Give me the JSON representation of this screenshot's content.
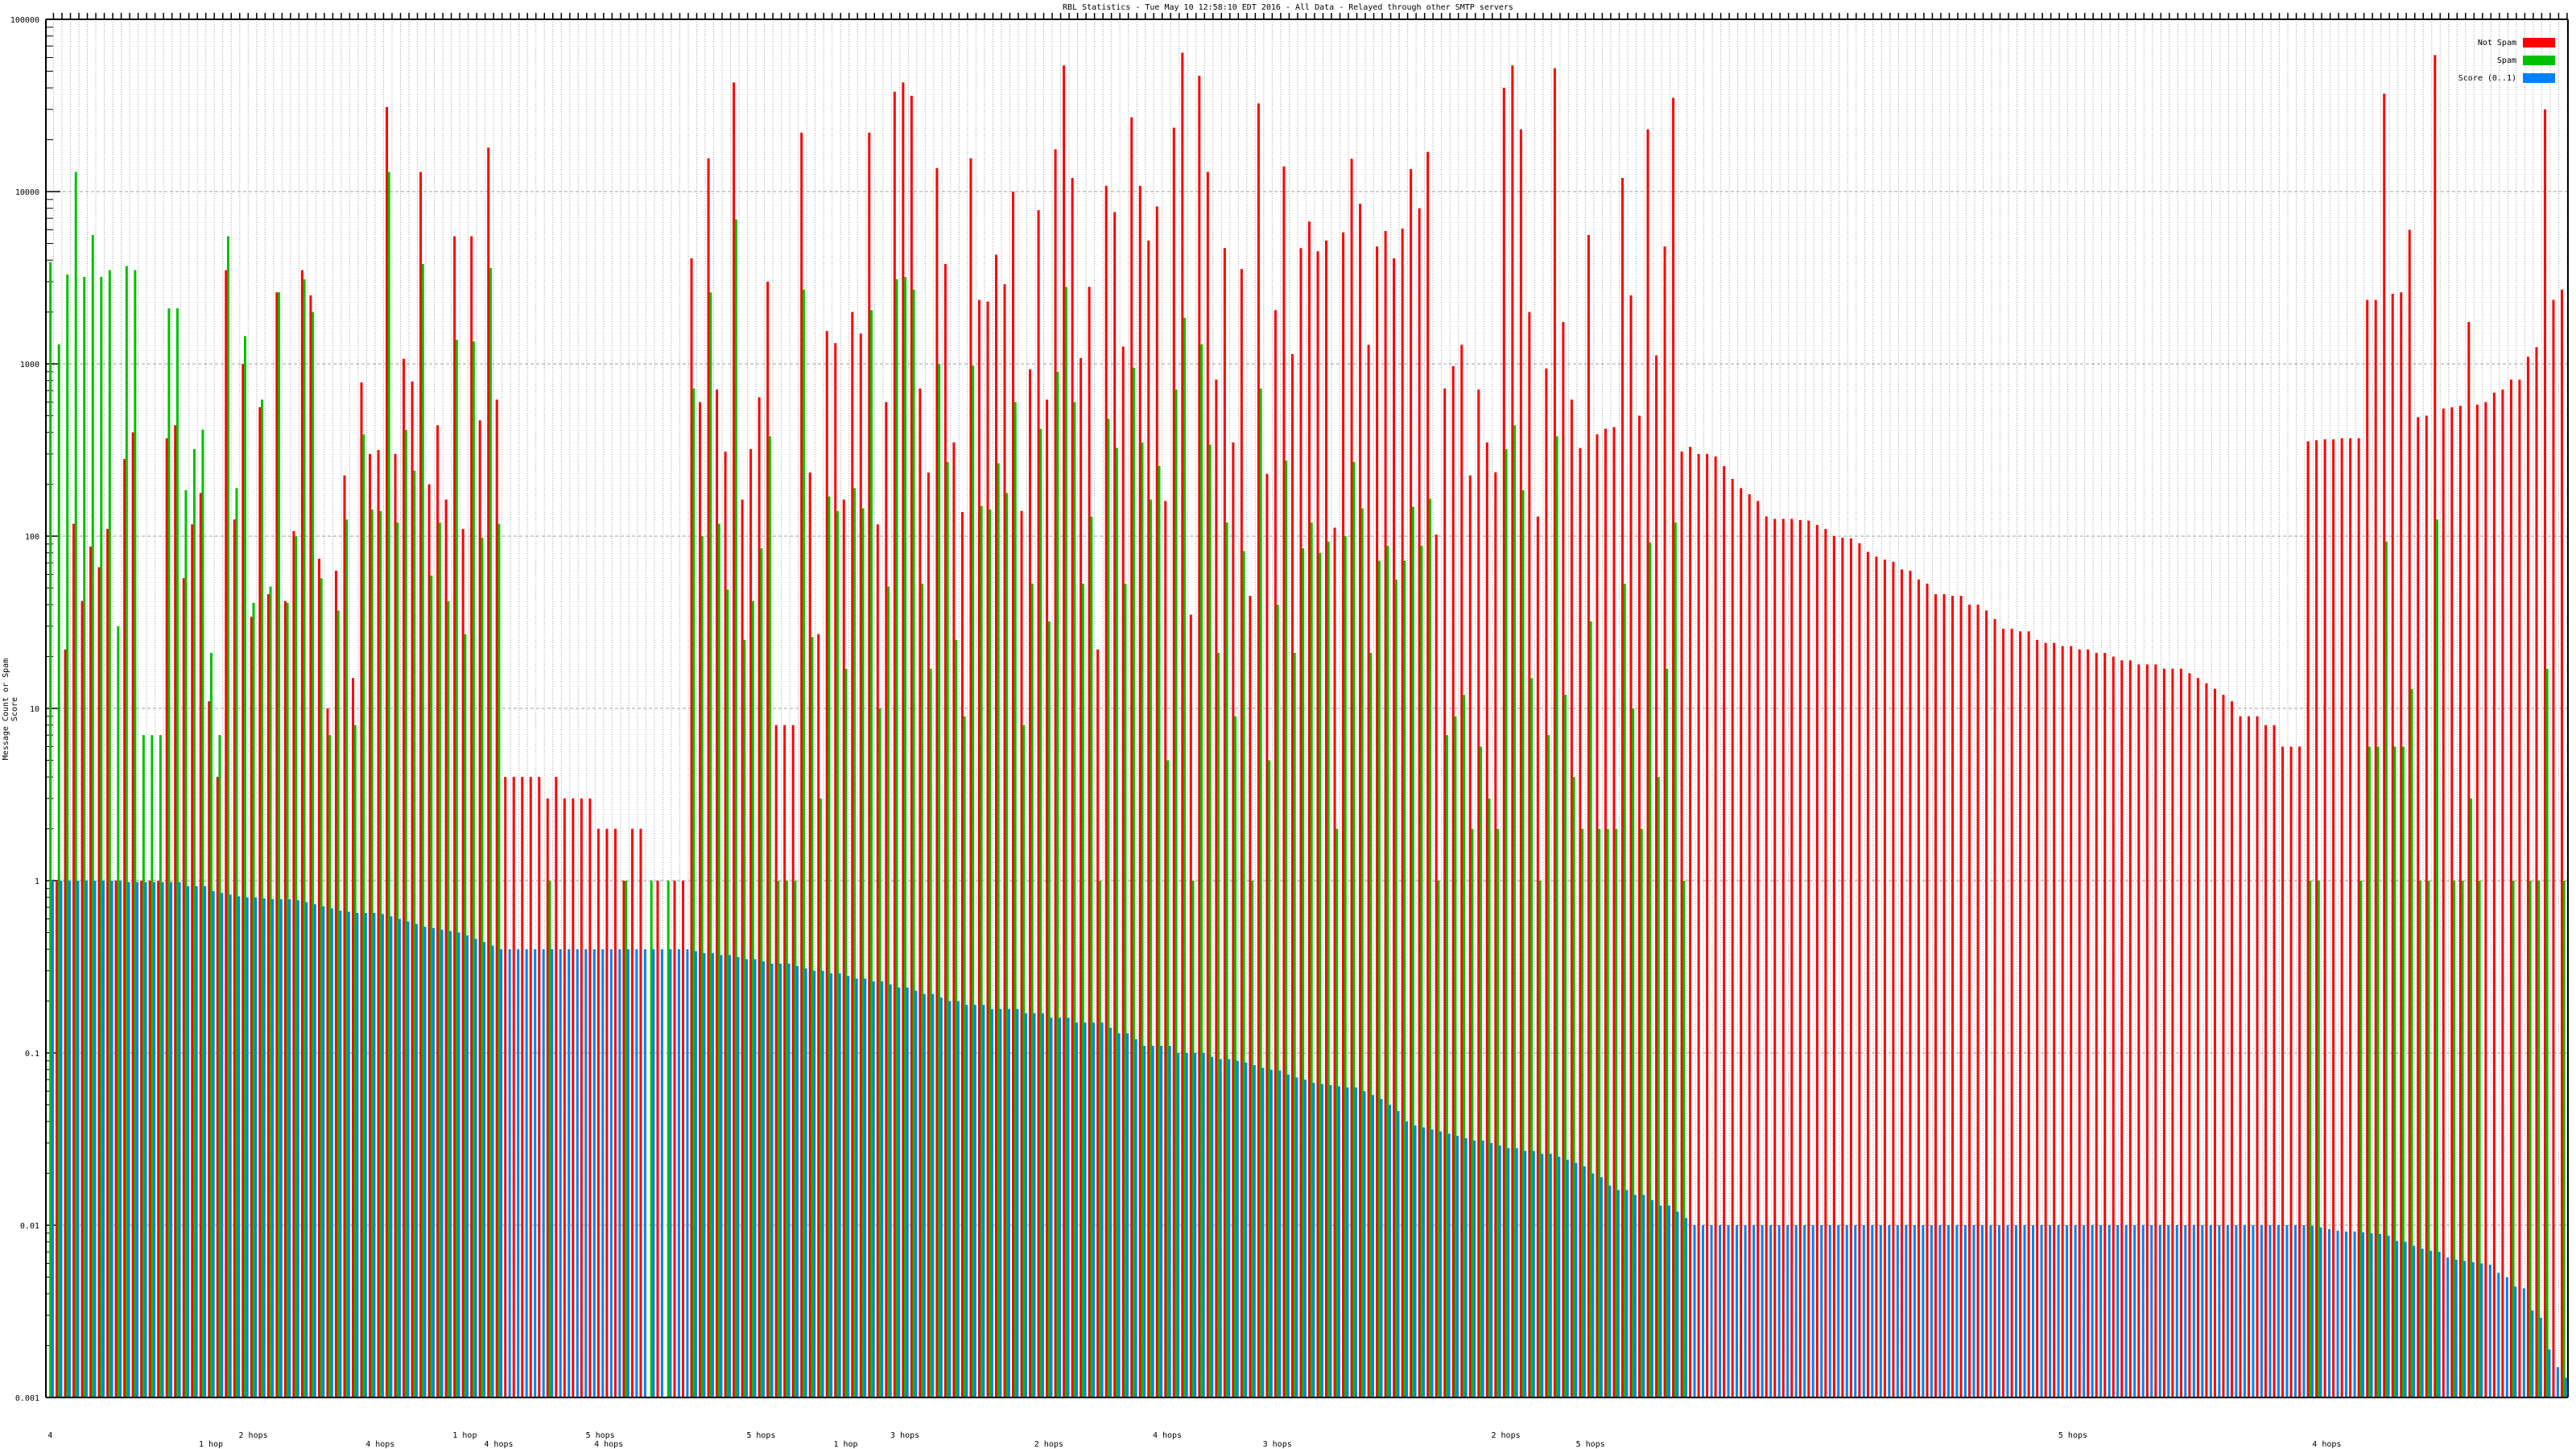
{
  "chart_data": {
    "type": "bar",
    "title": "RBL Statistics - Tue May 10 12:58:10 EDT 2016 - All Data - Relayed through other SMTP servers",
    "xlabel": "",
    "ylabel": "Message Count or Spam Score",
    "yscale": "log",
    "ylim": [
      0.001,
      100000
    ],
    "yticks": [
      "100000",
      "10000",
      "1000",
      "100",
      "10",
      "1",
      "0.1",
      "0.01",
      "0.001"
    ],
    "grid": true,
    "legend_position": "top-right",
    "x_label_fragments": [
      {
        "group": 1,
        "text": "4"
      },
      {
        "group": 20,
        "text": "1 hop"
      },
      {
        "group": 25,
        "text": "2 hops"
      },
      {
        "group": 40,
        "text": "4 hops"
      },
      {
        "group": 50,
        "text": "1 hop"
      },
      {
        "group": 54,
        "text": "4 hops"
      },
      {
        "group": 66,
        "text": "5 hops"
      },
      {
        "group": 67,
        "text": "4 hops"
      },
      {
        "group": 85,
        "text": "5 hops"
      },
      {
        "group": 95,
        "text": "1 hop"
      },
      {
        "group": 102,
        "text": "3 hops"
      },
      {
        "group": 119,
        "text": "2 hops"
      },
      {
        "group": 133,
        "text": "4 hops"
      },
      {
        "group": 146,
        "text": "3 hops"
      },
      {
        "group": 173,
        "text": "2 hops"
      },
      {
        "group": 183,
        "text": "5 hops"
      },
      {
        "group": 240,
        "text": "5 hops"
      },
      {
        "group": 270,
        "text": "4 hops"
      }
    ],
    "series": [
      {
        "name": "Not Spam",
        "color": "#ff0000",
        "values": [
          0,
          1,
          22,
          118,
          42,
          87,
          66,
          110,
          1,
          280,
          400,
          1,
          1,
          1,
          370,
          440,
          57,
          117,
          178,
          11,
          4,
          3500,
          125,
          1000,
          34,
          560,
          46,
          2600,
          42,
          107,
          3500,
          2500,
          74,
          10,
          63,
          225,
          15,
          780,
          300,
          316,
          31000,
          300,
          1070,
          790,
          13000,
          200,
          440,
          163,
          5500,
          110,
          5500,
          470,
          18000,
          620,
          4,
          4,
          4,
          4,
          4,
          3,
          4,
          3,
          3,
          3,
          3,
          2,
          2,
          2,
          1,
          2,
          2,
          0,
          1,
          0,
          1,
          1,
          4100,
          600,
          15600,
          710,
          310,
          43000,
          163,
          320,
          640,
          3000,
          8,
          8,
          8,
          22000,
          234,
          27,
          1550,
          1320,
          163,
          2000,
          1500,
          22000,
          117,
          600,
          38000,
          43000,
          36000,
          720,
          234,
          13700,
          3800,
          350,
          138,
          15600,
          2350,
          2300,
          4300,
          2900,
          10000,
          140,
          930,
          7800,
          620,
          17600,
          54000,
          12000,
          1080,
          2800,
          22,
          10800,
          7600,
          1260,
          27000,
          10800,
          5200,
          8200,
          160,
          23500,
          64000,
          35,
          47000,
          13000,
          810,
          4700,
          350,
          3550,
          45,
          32500,
          230,
          2050,
          14000,
          1140,
          4700,
          6700,
          4500,
          5200,
          112,
          5800,
          15500,
          8500,
          1290,
          4800,
          5900,
          4100,
          6100,
          13500,
          8000,
          17000,
          102,
          720,
          970,
          1290,
          225,
          710,
          350,
          235,
          40000,
          54000,
          23000,
          2000,
          130,
          940,
          52000,
          1750,
          620,
          325,
          5600,
          390,
          420,
          430,
          12000,
          2500,
          500,
          23000,
          1120,
          4800,
          35000,
          310,
          330,
          300,
          300,
          290,
          255,
          215,
          190,
          175,
          160,
          130,
          126,
          126,
          126,
          124,
          123,
          116,
          110,
          100,
          98,
          97,
          91,
          81,
          76,
          73,
          71,
          64,
          63,
          56,
          53,
          46,
          46,
          45,
          45,
          40,
          40,
          37,
          33,
          29,
          29,
          28,
          28,
          25,
          24,
          24,
          23,
          23,
          22,
          22,
          21,
          21,
          20,
          19,
          19,
          18,
          18,
          18,
          17,
          17,
          17,
          16,
          15,
          14,
          13,
          12,
          11,
          9,
          9,
          9,
          8,
          8,
          6,
          6,
          6,
          355,
          360,
          365,
          365,
          370,
          370,
          370,
          2350,
          2350,
          37000,
          2550,
          2600,
          6000,
          490,
          500,
          62000,
          550,
          560,
          570,
          1750,
          580,
          600,
          680,
          710,
          810,
          810,
          1100,
          1250,
          30000,
          2350,
          2700
        ]
      },
      {
        "name": "Spam",
        "color": "#00c000",
        "values": [
          3900,
          1300,
          3300,
          13000,
          3200,
          5600,
          3200,
          3500,
          30,
          3700,
          3500,
          7,
          7,
          7,
          2100,
          2100,
          185,
          320,
          415,
          21,
          7,
          5500,
          190,
          1450,
          41,
          620,
          51,
          2600,
          41,
          100,
          3100,
          2000,
          57,
          7,
          37,
          125,
          8,
          390,
          143,
          140,
          13000,
          120,
          415,
          240,
          3800,
          59,
          120,
          42,
          1380,
          27,
          1350,
          98,
          3600,
          118,
          0,
          0,
          0,
          0,
          0,
          1,
          0,
          0,
          0,
          0,
          0,
          0,
          0,
          0,
          1,
          0,
          0,
          1,
          0,
          1,
          0,
          0,
          720,
          100,
          2600,
          118,
          49,
          6900,
          25,
          42,
          85,
          380,
          1,
          1,
          1,
          2700,
          26,
          3,
          170,
          140,
          17,
          190,
          145,
          2050,
          10,
          51,
          3100,
          3200,
          2700,
          53,
          17,
          1000,
          270,
          25,
          9,
          980,
          150,
          143,
          265,
          178,
          600,
          8,
          53,
          420,
          32,
          900,
          2800,
          600,
          53,
          130,
          1,
          480,
          325,
          53,
          950,
          350,
          163,
          256,
          5,
          710,
          1850,
          1,
          1300,
          340,
          21,
          120,
          9,
          82,
          1,
          720,
          5,
          40,
          275,
          21,
          85,
          120,
          80,
          93,
          2,
          100,
          270,
          145,
          21,
          72,
          88,
          56,
          72,
          148,
          88,
          165,
          1,
          7,
          9,
          12,
          2,
          6,
          3,
          2,
          320,
          440,
          185,
          15,
          1,
          7,
          380,
          12,
          4,
          2,
          32,
          2,
          2,
          2,
          53,
          10,
          2,
          92,
          4,
          17,
          120,
          1,
          0,
          0,
          0,
          0,
          0,
          0,
          0,
          0,
          0,
          0,
          0,
          0,
          0,
          0,
          0,
          0,
          0,
          0,
          0,
          0,
          0,
          0,
          0,
          0,
          0,
          0,
          0,
          0,
          0,
          0,
          0,
          0,
          0,
          0,
          0,
          0,
          0,
          0,
          0,
          0,
          0,
          0,
          0,
          0,
          0,
          0,
          0,
          0,
          0,
          0,
          0,
          0,
          0,
          0,
          0,
          0,
          0,
          0,
          0,
          0,
          0,
          0,
          0,
          0,
          0,
          0,
          0,
          0,
          0,
          0,
          0,
          0,
          0,
          1,
          1,
          0,
          0,
          0,
          0,
          1,
          6,
          6,
          93,
          6,
          6,
          13,
          1,
          1,
          125,
          0,
          1,
          1,
          3,
          1,
          0,
          0,
          0,
          1,
          0,
          1,
          1,
          17,
          0,
          1
        ]
      },
      {
        "name": "Score (0..1)",
        "color": "#0080ff",
        "values": [
          1,
          1,
          1,
          1,
          1,
          1,
          1,
          1,
          1,
          0.98,
          0.98,
          0.98,
          0.98,
          0.98,
          0.98,
          0.98,
          0.93,
          0.93,
          0.93,
          0.87,
          0.85,
          0.83,
          0.81,
          0.8,
          0.8,
          0.79,
          0.78,
          0.78,
          0.78,
          0.77,
          0.75,
          0.73,
          0.71,
          0.69,
          0.67,
          0.66,
          0.65,
          0.65,
          0.65,
          0.64,
          0.62,
          0.6,
          0.58,
          0.56,
          0.54,
          0.53,
          0.52,
          0.51,
          0.5,
          0.48,
          0.46,
          0.44,
          0.42,
          0.4,
          0.4,
          0.4,
          0.4,
          0.4,
          0.4,
          0.4,
          0.4,
          0.4,
          0.4,
          0.4,
          0.4,
          0.4,
          0.4,
          0.4,
          0.4,
          0.4,
          0.4,
          0.4,
          0.4,
          0.4,
          0.4,
          0.4,
          0.39,
          0.38,
          0.38,
          0.37,
          0.37,
          0.36,
          0.35,
          0.35,
          0.34,
          0.33,
          0.33,
          0.33,
          0.32,
          0.31,
          0.3,
          0.3,
          0.29,
          0.29,
          0.28,
          0.27,
          0.27,
          0.26,
          0.26,
          0.25,
          0.24,
          0.24,
          0.23,
          0.22,
          0.22,
          0.21,
          0.2,
          0.2,
          0.19,
          0.19,
          0.19,
          0.18,
          0.18,
          0.18,
          0.18,
          0.17,
          0.17,
          0.17,
          0.16,
          0.16,
          0.16,
          0.15,
          0.15,
          0.15,
          0.15,
          0.14,
          0.13,
          0.13,
          0.12,
          0.11,
          0.11,
          0.11,
          0.11,
          0.1,
          0.1,
          0.1,
          0.1,
          0.095,
          0.092,
          0.092,
          0.09,
          0.088,
          0.085,
          0.082,
          0.08,
          0.079,
          0.075,
          0.072,
          0.07,
          0.067,
          0.066,
          0.065,
          0.064,
          0.063,
          0.063,
          0.06,
          0.057,
          0.054,
          0.05,
          0.046,
          0.04,
          0.038,
          0.037,
          0.036,
          0.035,
          0.034,
          0.033,
          0.032,
          0.031,
          0.031,
          0.03,
          0.029,
          0.028,
          0.028,
          0.027,
          0.027,
          0.026,
          0.026,
          0.025,
          0.024,
          0.023,
          0.022,
          0.02,
          0.019,
          0.017,
          0.016,
          0.016,
          0.015,
          0.015,
          0.014,
          0.013,
          0.013,
          0.012,
          0.011,
          0.01,
          0.01,
          0.01,
          0.01,
          0.01,
          0.01,
          0.01,
          0.01,
          0.01,
          0.01,
          0.01,
          0.01,
          0.01,
          0.01,
          0.01,
          0.01,
          0.01,
          0.01,
          0.01,
          0.01,
          0.01,
          0.01,
          0.01,
          0.01,
          0.01,
          0.01,
          0.01,
          0.01,
          0.01,
          0.01,
          0.01,
          0.01,
          0.01,
          0.01,
          0.01,
          0.01,
          0.01,
          0.01,
          0.01,
          0.01,
          0.01,
          0.01,
          0.01,
          0.01,
          0.01,
          0.01,
          0.01,
          0.01,
          0.01,
          0.01,
          0.01,
          0.01,
          0.01,
          0.01,
          0.01,
          0.01,
          0.01,
          0.01,
          0.01,
          0.01,
          0.01,
          0.01,
          0.01,
          0.01,
          0.01,
          0.01,
          0.01,
          0.01,
          0.01,
          0.01,
          0.01,
          0.01,
          0.01,
          0.0099,
          0.0097,
          0.0095,
          0.0093,
          0.0092,
          0.0092,
          0.0091,
          0.009,
          0.0089,
          0.0087,
          0.0081,
          0.008,
          0.0076,
          0.0073,
          0.0071,
          0.007,
          0.0065,
          0.0063,
          0.0062,
          0.0061,
          0.006,
          0.0059,
          0.0053,
          0.005,
          0.0044,
          0.0043,
          0.0032,
          0.0029,
          0.0019,
          0.0015,
          0.0013
        ]
      }
    ]
  }
}
